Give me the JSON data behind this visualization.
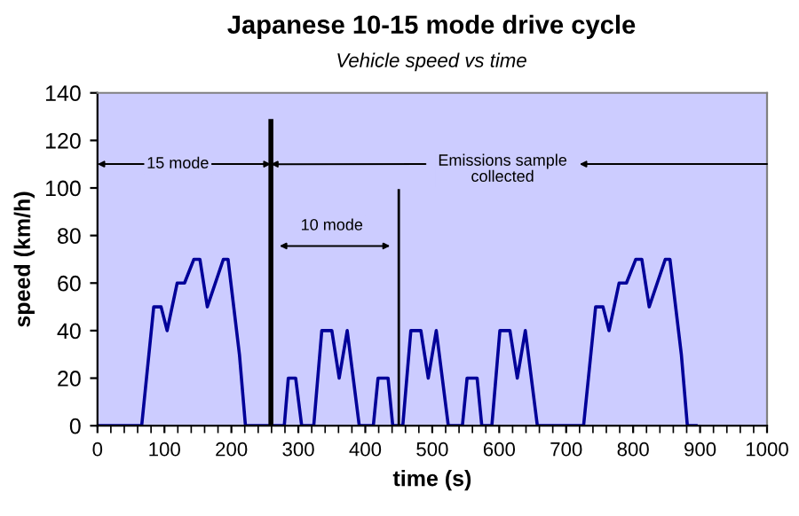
{
  "chart_data": {
    "type": "line",
    "title": "Japanese 10-15 mode drive cycle",
    "subtitle": "Vehicle speed vs time",
    "xlabel": "time (s)",
    "ylabel": "speed (km/h)",
    "xlim": [
      0,
      1000
    ],
    "ylim": [
      0,
      140
    ],
    "xticks": [
      0,
      100,
      200,
      300,
      400,
      500,
      600,
      700,
      800,
      900,
      1000
    ],
    "yticks": [
      0,
      20,
      40,
      60,
      80,
      100,
      120,
      140
    ],
    "grid": false,
    "legend": false,
    "series": [
      {
        "color": "#000099",
        "x": [
          0,
          66,
          84,
          95,
          104,
          119,
          130,
          144,
          153,
          164,
          188,
          195,
          212,
          221,
          279,
          285,
          296,
          305,
          323,
          335,
          350,
          361,
          373,
          391,
          412,
          419,
          434,
          441,
          456,
          468,
          483,
          494,
          506,
          524,
          545,
          552,
          567,
          574,
          589,
          601,
          616,
          627,
          639,
          657,
          726,
          744,
          755,
          764,
          779,
          790,
          804,
          813,
          824,
          848,
          855,
          872,
          881,
          894
        ],
        "values": [
          0,
          0,
          50,
          50,
          40,
          60,
          60,
          70,
          70,
          50,
          70,
          70,
          30,
          0,
          0,
          20,
          20,
          0,
          0,
          40,
          40,
          20,
          40,
          0,
          0,
          20,
          20,
          0,
          0,
          40,
          40,
          20,
          40,
          0,
          0,
          20,
          20,
          0,
          0,
          40,
          40,
          20,
          40,
          0,
          0,
          50,
          50,
          40,
          60,
          60,
          70,
          70,
          50,
          70,
          70,
          30,
          0,
          0
        ]
      },
      {
        "color": "#000000",
        "x": [
          259,
          259
        ],
        "values": [
          0,
          128
        ]
      },
      {
        "color": "#000000",
        "x": [
          450,
          450
        ],
        "values": [
          0,
          99
        ]
      }
    ],
    "annotations": [
      "15 mode",
      {
        "text": "Emissions sample\ncollected",
        "x": 259,
        "y": 110
      },
      "10 mode"
    ]
  }
}
